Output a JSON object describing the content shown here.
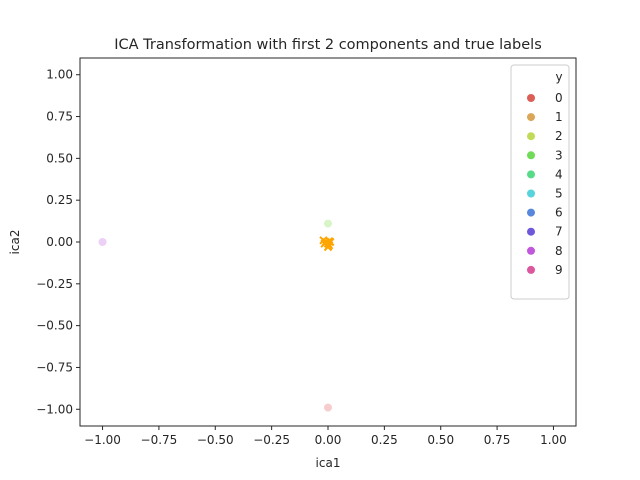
{
  "chart_data": {
    "type": "scatter",
    "title": "ICA Transformation with first 2 components and true labels",
    "xlabel": "ica1",
    "ylabel": "ica2",
    "xlim": [
      -1.1,
      1.1
    ],
    "ylim": [
      -1.1,
      1.1
    ],
    "xticks": [
      -1.0,
      -0.75,
      -0.5,
      -0.25,
      0.0,
      0.25,
      0.5,
      0.75,
      1.0
    ],
    "yticks": [
      -1.0,
      -0.75,
      -0.5,
      -0.25,
      0.0,
      0.25,
      0.5,
      0.75,
      1.0
    ],
    "xtick_labels": [
      "−1.00",
      "−0.75",
      "−0.50",
      "−0.25",
      "0.00",
      "0.25",
      "0.50",
      "0.75",
      "1.00"
    ],
    "ytick_labels": [
      "−1.00",
      "−0.75",
      "−0.50",
      "−0.25",
      "0.00",
      "0.25",
      "0.50",
      "0.75",
      "1.00"
    ],
    "grid": false,
    "legend": {
      "title": "y",
      "placement": "top-right",
      "entries": [
        {
          "label": "0",
          "color": "#db5f57"
        },
        {
          "label": "1",
          "color": "#dba657"
        },
        {
          "label": "2",
          "color": "#bfdb57"
        },
        {
          "label": "3",
          "color": "#6fdb57"
        },
        {
          "label": "4",
          "color": "#57db89"
        },
        {
          "label": "5",
          "color": "#57d3db"
        },
        {
          "label": "6",
          "color": "#5788db"
        },
        {
          "label": "7",
          "color": "#6f57db"
        },
        {
          "label": "8",
          "color": "#c157db"
        },
        {
          "label": "9",
          "color": "#db579e"
        }
      ]
    },
    "points": [
      {
        "x": -1.0,
        "y": 0.0,
        "color": "#ecd0f5",
        "marker": "circle"
      },
      {
        "x": 0.0,
        "y": 0.11,
        "color": "#d7f5c7",
        "marker": "circle"
      },
      {
        "x": 0.0,
        "y": -0.99,
        "color": "#f7cccc",
        "marker": "circle"
      }
    ],
    "cross_points": [
      {
        "x": -0.02,
        "y": 0.01,
        "color": "#ffa500",
        "marker": "x"
      },
      {
        "x": -0.01,
        "y": 0.0,
        "color": "#ffa500",
        "marker": "x"
      },
      {
        "x": 0.0,
        "y": -0.01,
        "color": "#ffa500",
        "marker": "x"
      },
      {
        "x": 0.005,
        "y": -0.02,
        "color": "#ffa500",
        "marker": "x"
      },
      {
        "x": 0.0,
        "y": -0.03,
        "color": "#ffa500",
        "marker": "x"
      },
      {
        "x": 0.01,
        "y": 0.0,
        "color": "#ffa500",
        "marker": "x"
      },
      {
        "x": 0.005,
        "y": 0.005,
        "color": "#ffa500",
        "marker": "x"
      },
      {
        "x": -0.015,
        "y": -0.01,
        "color": "#ffa500",
        "marker": "x"
      }
    ]
  }
}
